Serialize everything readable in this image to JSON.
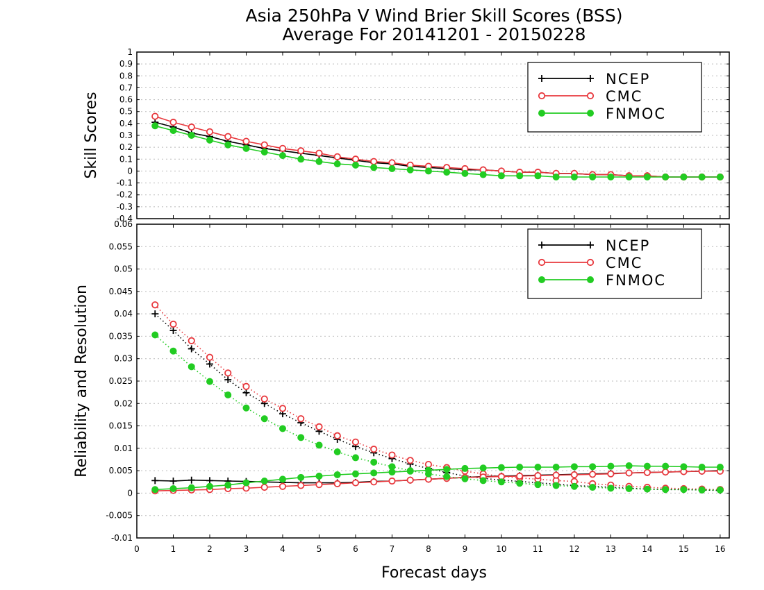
{
  "title_line1": "Asia 250hPa V Wind Brier Skill Scores (BSS)",
  "title_line2": "Average For 20141201 - 20150228",
  "xlabel": "Forecast days",
  "colors": {
    "NCEP": "#000000",
    "CMC": "#e8383d",
    "FNMOC": "#22cc22"
  },
  "chart_data": [
    {
      "type": "line",
      "panel": "top",
      "ylabel": "Skill Scores",
      "xlim": [
        0,
        16.25
      ],
      "ylim": [
        -0.4,
        1
      ],
      "x_ticks": [
        0,
        1,
        2,
        3,
        4,
        5,
        6,
        7,
        8,
        9,
        10,
        11,
        12,
        13,
        14,
        15,
        16
      ],
      "y_ticks": [
        -0.4,
        -0.3,
        -0.2,
        -0.1,
        0,
        0.1,
        0.2,
        0.3,
        0.4,
        0.5,
        0.6,
        0.7,
        0.8,
        0.9,
        1
      ],
      "y_tick_labels": [
        "-0.4",
        "-0.3",
        "-0.2",
        "-0.1",
        "0",
        "0.1",
        "0.2",
        "0.3",
        "0.4",
        "0.5",
        "0.6",
        "0.7",
        "0.8",
        "0.9",
        "1"
      ],
      "grid": "horizontal dotted",
      "legend": "top-right",
      "x": [
        0.5,
        1,
        1.5,
        2,
        2.5,
        3,
        3.5,
        4,
        4.5,
        5,
        5.5,
        6,
        6.5,
        7,
        7.5,
        8,
        8.5,
        9,
        9.5,
        10,
        10.5,
        11,
        11.5,
        12,
        12.5,
        13,
        13.5,
        14,
        14.5,
        15,
        15.5,
        16
      ],
      "series": [
        {
          "name": "NCEP",
          "marker": "plus",
          "linestyle": "solid",
          "values": [
            0.41,
            0.37,
            0.32,
            0.29,
            0.25,
            0.22,
            0.19,
            0.17,
            0.15,
            0.13,
            0.11,
            0.09,
            0.07,
            0.06,
            0.04,
            0.03,
            0.02,
            0.01,
            0.01,
            0.0,
            -0.01,
            -0.01,
            -0.02,
            -0.02,
            -0.03,
            -0.03,
            -0.04,
            -0.04,
            -0.05,
            -0.05,
            -0.05,
            -0.05
          ]
        },
        {
          "name": "CMC",
          "marker": "open-circle",
          "linestyle": "solid",
          "values": [
            0.46,
            0.41,
            0.37,
            0.33,
            0.29,
            0.25,
            0.22,
            0.19,
            0.17,
            0.15,
            0.12,
            0.1,
            0.08,
            0.07,
            0.05,
            0.04,
            0.03,
            0.02,
            0.01,
            0.0,
            -0.01,
            -0.01,
            -0.02,
            -0.02,
            -0.03,
            -0.03,
            -0.04,
            -0.04,
            -0.05,
            -0.05,
            -0.05,
            -0.05
          ]
        },
        {
          "name": "FNMOC",
          "marker": "filled-circle",
          "linestyle": "solid",
          "values": [
            0.38,
            0.34,
            0.3,
            0.26,
            0.22,
            0.19,
            0.16,
            0.13,
            0.1,
            0.08,
            0.06,
            0.05,
            0.03,
            0.02,
            0.01,
            0.0,
            -0.01,
            -0.02,
            -0.03,
            -0.04,
            -0.04,
            -0.04,
            -0.05,
            -0.05,
            -0.05,
            -0.05,
            -0.05,
            -0.05,
            -0.05,
            -0.05,
            -0.05,
            -0.05
          ]
        }
      ]
    },
    {
      "type": "line",
      "panel": "bottom",
      "ylabel": "Reliability and Resolution",
      "xlim": [
        0,
        16.25
      ],
      "ylim": [
        -0.01,
        0.06
      ],
      "x_ticks": [
        0,
        1,
        2,
        3,
        4,
        5,
        6,
        7,
        8,
        9,
        10,
        11,
        12,
        13,
        14,
        15,
        16
      ],
      "y_ticks": [
        -0.01,
        -0.005,
        0,
        0.005,
        0.01,
        0.015,
        0.02,
        0.025,
        0.03,
        0.035,
        0.04,
        0.045,
        0.05,
        0.055,
        0.06
      ],
      "y_tick_labels": [
        "-0.01",
        "-0.005",
        "0",
        "0.005",
        "0.01",
        "0.015",
        "0.02",
        "0.025",
        "0.03",
        "0.035",
        "0.04",
        "0.045",
        "0.05",
        "0.055",
        "0.06"
      ],
      "grid": "horizontal dotted",
      "legend": "top-right",
      "x": [
        0.5,
        1,
        1.5,
        2,
        2.5,
        3,
        3.5,
        4,
        4.5,
        5,
        5.5,
        6,
        6.5,
        7,
        7.5,
        8,
        8.5,
        9,
        9.5,
        10,
        10.5,
        11,
        11.5,
        12,
        12.5,
        13,
        13.5,
        14,
        14.5,
        15,
        15.5,
        16
      ],
      "series": [
        {
          "name": "NCEP",
          "component": "reliability",
          "marker": "plus",
          "linestyle": "dotted",
          "values": [
            0.04,
            0.0363,
            0.0322,
            0.0288,
            0.0253,
            0.0224,
            0.02,
            0.0177,
            0.0157,
            0.0138,
            0.012,
            0.0104,
            0.009,
            0.0077,
            0.0065,
            0.0055,
            0.0046,
            0.0038,
            0.0033,
            0.0029,
            0.0026,
            0.0023,
            0.002,
            0.0017,
            0.0015,
            0.0013,
            0.0011,
            0.0009,
            0.0008,
            0.0008,
            0.0007,
            0.0006
          ]
        },
        {
          "name": "NCEP",
          "component": "resolution",
          "marker": "plus",
          "linestyle": "solid",
          "values": [
            0.0028,
            0.0027,
            0.0029,
            0.0028,
            0.0027,
            0.0026,
            0.0025,
            0.0024,
            0.0023,
            0.0023,
            0.0023,
            0.0024,
            0.0026,
            0.0027,
            0.0029,
            0.0031,
            0.0033,
            0.0035,
            0.0037,
            0.0038,
            0.0039,
            0.004,
            0.0041,
            0.0042,
            0.0043,
            0.0044,
            0.0045,
            0.0046,
            0.0047,
            0.0048,
            0.0049,
            0.005
          ]
        },
        {
          "name": "CMC",
          "component": "reliability",
          "marker": "open-circle",
          "linestyle": "dotted",
          "values": [
            0.042,
            0.0377,
            0.034,
            0.0303,
            0.0268,
            0.0238,
            0.021,
            0.0189,
            0.0166,
            0.0148,
            0.0128,
            0.0114,
            0.0098,
            0.0085,
            0.0073,
            0.0064,
            0.0057,
            0.0049,
            0.0043,
            0.0037,
            0.0034,
            0.0031,
            0.0028,
            0.0026,
            0.0021,
            0.0018,
            0.0015,
            0.0013,
            0.0011,
            0.001,
            0.0009,
            0.0008
          ]
        },
        {
          "name": "CMC",
          "component": "resolution",
          "marker": "open-circle",
          "linestyle": "solid",
          "values": [
            0.0005,
            0.0006,
            0.0007,
            0.0008,
            0.001,
            0.0011,
            0.0013,
            0.0015,
            0.0017,
            0.0019,
            0.0021,
            0.0023,
            0.0025,
            0.0027,
            0.0029,
            0.0031,
            0.0033,
            0.0035,
            0.0036,
            0.0037,
            0.0038,
            0.0039,
            0.004,
            0.0041,
            0.0042,
            0.0043,
            0.0045,
            0.0046,
            0.0047,
            0.0048,
            0.0049,
            0.0049
          ]
        },
        {
          "name": "FNMOC",
          "component": "reliability",
          "marker": "filled-circle",
          "linestyle": "dotted",
          "values": [
            0.0353,
            0.0317,
            0.0282,
            0.0249,
            0.0219,
            0.019,
            0.0166,
            0.0144,
            0.0124,
            0.0107,
            0.0092,
            0.0079,
            0.0069,
            0.0059,
            0.005,
            0.0043,
            0.0037,
            0.0032,
            0.0028,
            0.0025,
            0.0022,
            0.0019,
            0.0017,
            0.0015,
            0.0013,
            0.0011,
            0.001,
            0.0009,
            0.0008,
            0.0008,
            0.0007,
            0.0007
          ]
        },
        {
          "name": "FNMOC",
          "component": "resolution",
          "marker": "filled-circle",
          "linestyle": "solid",
          "values": [
            0.0008,
            0.001,
            0.0012,
            0.0015,
            0.0018,
            0.0023,
            0.0027,
            0.0031,
            0.0035,
            0.0038,
            0.0041,
            0.0043,
            0.0045,
            0.0047,
            0.0049,
            0.0051,
            0.0053,
            0.0055,
            0.0056,
            0.0057,
            0.0058,
            0.0058,
            0.0058,
            0.0059,
            0.0059,
            0.006,
            0.0061,
            0.006,
            0.006,
            0.0059,
            0.0058,
            0.0058
          ]
        }
      ]
    }
  ]
}
